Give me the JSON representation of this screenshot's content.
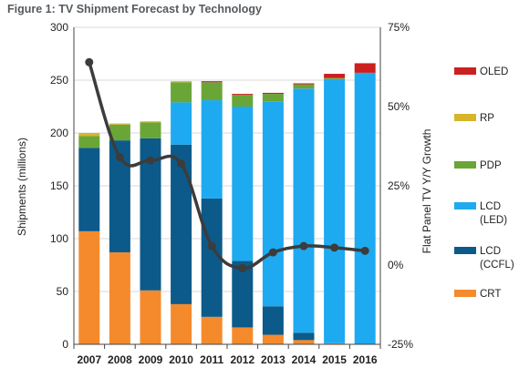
{
  "chart_data": {
    "type": "bar",
    "title": "Figure 1: TV Shipment Forecast by Technology",
    "ylabel": "Shipments  (millions)",
    "y2label": "Flat Panel TV Y/Y Growth",
    "ylim": [
      0,
      300
    ],
    "yticks": [
      "0",
      "50",
      "100",
      "150",
      "200",
      "250",
      "300"
    ],
    "y2lim": [
      -0.25,
      0.75
    ],
    "y2ticks": [
      "-25%",
      "0%",
      "25%",
      "50%",
      "75%"
    ],
    "categories": [
      "2007",
      "2008",
      "2009",
      "2010",
      "2011",
      "2012",
      "2013",
      "2014",
      "2015",
      "2016"
    ],
    "stacked": true,
    "legend_position": "right",
    "series": [
      {
        "name": "CRT",
        "color": "#f58a2c",
        "values": [
          107,
          87,
          51,
          38,
          26,
          16,
          9,
          4,
          1,
          0
        ]
      },
      {
        "name": "LCD\n(CCFL)",
        "color": "#0c5a8a",
        "values": [
          79,
          106,
          144,
          151,
          112,
          63,
          27,
          7,
          0,
          0
        ]
      },
      {
        "name": "LCD\n(LED)",
        "color": "#1eaaf0",
        "values": [
          0,
          0,
          0,
          40,
          93,
          146,
          194,
          231,
          250,
          257
        ]
      },
      {
        "name": "PDP",
        "color": "#6aa637",
        "values": [
          11,
          15,
          15,
          19,
          17,
          11,
          7,
          4,
          1,
          0
        ]
      },
      {
        "name": "RP",
        "color": "#d6b52a",
        "values": [
          3,
          1,
          1,
          1,
          0,
          0,
          0,
          0,
          0,
          0
        ]
      },
      {
        "name": "OLED",
        "color": "#cc1f1f",
        "values": [
          0,
          0,
          0,
          0,
          1,
          1,
          1,
          1,
          4,
          9
        ]
      }
    ],
    "line_series": {
      "name": "Flat Panel TV Y/Y Growth",
      "axis": "right",
      "color": "#3c3c3c",
      "values": [
        0.64,
        0.34,
        0.33,
        0.32,
        0.06,
        -0.01,
        0.04,
        0.06,
        0.055,
        0.045
      ]
    }
  }
}
